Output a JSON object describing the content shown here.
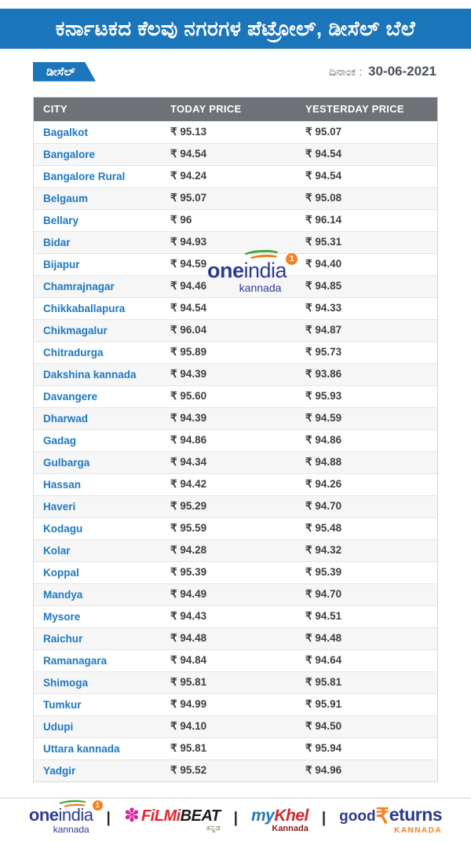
{
  "page": {
    "title": "ಕರ್ನಾಟಕದ ಕೆಲವು ನಗರಗಳ ಪೆಟ್ರೋಲ್, ಡೀಸೆಲ್ ಬೆಲೆ",
    "fuel_badge": "ಡೀಸೆಲ್",
    "date_label": "ದಿನಾಂಕ :",
    "date_value": "30-06-2021"
  },
  "colors": {
    "brand_blue": "#1b75bb",
    "table_header_gray": "#6e7277",
    "city_link_blue": "#1e79c4",
    "logo_navy": "#2e3b96",
    "accent_orange": "#f58220",
    "accent_red": "#e8262d",
    "accent_green": "#3aaa35"
  },
  "table": {
    "columns": [
      "CITY",
      "TODAY PRICE",
      "YESTERDAY PRICE"
    ],
    "currency": "₹",
    "rows": [
      {
        "city": "Bagalkot",
        "today": "95.13",
        "yesterday": "95.07"
      },
      {
        "city": "Bangalore",
        "today": "94.54",
        "yesterday": "94.54"
      },
      {
        "city": "Bangalore Rural",
        "today": "94.24",
        "yesterday": "94.54"
      },
      {
        "city": "Belgaum",
        "today": "95.07",
        "yesterday": "95.08"
      },
      {
        "city": "Bellary",
        "today": "96",
        "yesterday": "96.14"
      },
      {
        "city": "Bidar",
        "today": "94.93",
        "yesterday": "95.31"
      },
      {
        "city": "Bijapur",
        "today": "94.59",
        "yesterday": "94.40"
      },
      {
        "city": "Chamrajnagar",
        "today": "94.46",
        "yesterday": "94.85"
      },
      {
        "city": "Chikkaballapura",
        "today": "94.54",
        "yesterday": "94.33"
      },
      {
        "city": "Chikmagalur",
        "today": "96.04",
        "yesterday": "94.87"
      },
      {
        "city": "Chitradurga",
        "today": "95.89",
        "yesterday": "95.73"
      },
      {
        "city": "Dakshina kannada",
        "today": "94.39",
        "yesterday": "93.86"
      },
      {
        "city": "Davangere",
        "today": "95.60",
        "yesterday": "95.93"
      },
      {
        "city": "Dharwad",
        "today": "94.39",
        "yesterday": "94.59"
      },
      {
        "city": "Gadag",
        "today": "94.86",
        "yesterday": "94.86"
      },
      {
        "city": "Gulbarga",
        "today": "94.34",
        "yesterday": "94.88"
      },
      {
        "city": "Hassan",
        "today": "94.42",
        "yesterday": "94.26"
      },
      {
        "city": "Haveri",
        "today": "95.29",
        "yesterday": "94.70"
      },
      {
        "city": "Kodagu",
        "today": "95.59",
        "yesterday": "95.48"
      },
      {
        "city": "Kolar",
        "today": "94.28",
        "yesterday": "94.32"
      },
      {
        "city": "Koppal",
        "today": "95.39",
        "yesterday": "95.39"
      },
      {
        "city": "Mandya",
        "today": "94.49",
        "yesterday": "94.70"
      },
      {
        "city": "Mysore",
        "today": "94.43",
        "yesterday": "94.51"
      },
      {
        "city": "Raichur",
        "today": "94.48",
        "yesterday": "94.48"
      },
      {
        "city": "Ramanagara",
        "today": "94.84",
        "yesterday": "94.64"
      },
      {
        "city": "Shimoga",
        "today": "95.81",
        "yesterday": "95.81"
      },
      {
        "city": "Tumkur",
        "today": "94.99",
        "yesterday": "95.91"
      },
      {
        "city": "Udupi",
        "today": "94.10",
        "yesterday": "94.50"
      },
      {
        "city": "Uttara kannada",
        "today": "95.81",
        "yesterday": "95.94"
      },
      {
        "city": "Yadgir",
        "today": "95.52",
        "yesterday": "94.96"
      }
    ]
  },
  "watermark": {
    "brand_bold": "one",
    "brand_light": "india",
    "badge": "1",
    "sub": "kannada"
  },
  "footer": {
    "separator": "|",
    "oneindia": {
      "bold": "one",
      "light": "india",
      "badge": "1",
      "sub": "kannada"
    },
    "filmibeat": {
      "icon": "✽",
      "part1": "FiLMi",
      "part2": "BEAT",
      "sub": "ಕನ್ನಡ"
    },
    "mykhel": {
      "part1": "my",
      "part2": "Khel",
      "sub": "Kannada"
    },
    "goodreturns": {
      "part1": "good",
      "rupee": "₹",
      "part2": "eturns",
      "sub": "KANNADA"
    }
  }
}
